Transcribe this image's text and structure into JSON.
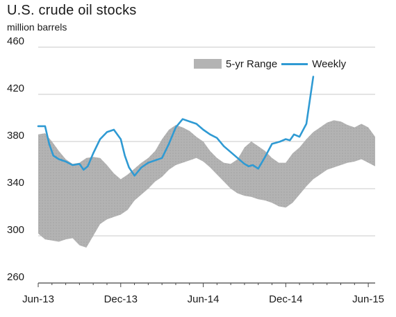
{
  "chart_data": {
    "type": "line",
    "title": "U.S. crude oil stocks",
    "subtitle": "million barrels",
    "xlabel": "",
    "ylabel": "",
    "ylim": [
      260,
      460
    ],
    "yticks": [
      "260",
      "300",
      "340",
      "380",
      "420",
      "460"
    ],
    "xticks": [
      "Jun-13",
      "Dec-13",
      "Jun-14",
      "Dec-14",
      "Jun-15"
    ],
    "x_unit": "months since Jun-13",
    "xlim": [
      0,
      24.5
    ],
    "grid": "horizontal",
    "legend_position": "top-right",
    "legend": [
      "5-yr Range",
      "Weekly"
    ],
    "colors": {
      "range": "#b3b3b3",
      "weekly": "#2f9ad3",
      "grid": "#c8c8c8",
      "axis": "#444444"
    },
    "range_band": {
      "name": "5-yr Range",
      "x": [
        0,
        0.5,
        1,
        1.5,
        2,
        2.5,
        3,
        3.5,
        4,
        4.5,
        5,
        5.5,
        6,
        6.5,
        7,
        7.5,
        8,
        8.5,
        9,
        9.5,
        10,
        10.5,
        11,
        11.5,
        12,
        12.5,
        13,
        13.5,
        14,
        14.5,
        15,
        15.5,
        16,
        16.5,
        17,
        17.5,
        18,
        18.5,
        19,
        19.5,
        20,
        20.5,
        21,
        21.5,
        22,
        22.5,
        23,
        23.5,
        24,
        24.5
      ],
      "high": [
        386,
        387,
        380,
        372,
        365,
        361,
        362,
        366,
        367,
        366,
        360,
        353,
        348,
        352,
        357,
        362,
        366,
        372,
        382,
        390,
        394,
        392,
        389,
        384,
        380,
        372,
        366,
        362,
        361,
        365,
        375,
        380,
        376,
        372,
        366,
        362,
        362,
        370,
        375,
        382,
        388,
        392,
        396,
        398,
        397,
        394,
        392,
        395,
        392,
        384
      ],
      "low": [
        302,
        297,
        296,
        295,
        297,
        298,
        292,
        290,
        300,
        310,
        314,
        316,
        318,
        322,
        330,
        335,
        340,
        346,
        350,
        356,
        360,
        362,
        364,
        366,
        363,
        358,
        352,
        346,
        340,
        336,
        334,
        333,
        331,
        330,
        328,
        325,
        324,
        328,
        335,
        342,
        348,
        352,
        356,
        358,
        360,
        362,
        363,
        365,
        362,
        359
      ]
    },
    "series": [
      {
        "name": "Weekly",
        "x": [
          0,
          0.5,
          0.8,
          1.1,
          1.5,
          2,
          2.5,
          3,
          3.3,
          3.6,
          4,
          4.5,
          5,
          5.5,
          6,
          6.3,
          6.6,
          7,
          7.5,
          8,
          8.5,
          9,
          9.5,
          10,
          10.5,
          11,
          11.5,
          12,
          12.5,
          13,
          13.5,
          14,
          14.5,
          15,
          15.3,
          15.6,
          16,
          16.5,
          17,
          17.3,
          17.6,
          18,
          18.3,
          18.6,
          19,
          19.5,
          20
        ],
        "y": [
          393,
          393,
          378,
          368,
          365,
          363,
          360,
          361,
          356,
          359,
          370,
          382,
          388,
          390,
          382,
          368,
          358,
          351,
          358,
          362,
          364,
          366,
          378,
          392,
          399,
          397,
          395,
          390,
          386,
          383,
          376,
          371,
          366,
          361,
          359,
          360,
          357,
          367,
          378,
          379,
          380,
          382,
          381,
          386,
          384,
          395,
          435
        ]
      }
    ]
  }
}
